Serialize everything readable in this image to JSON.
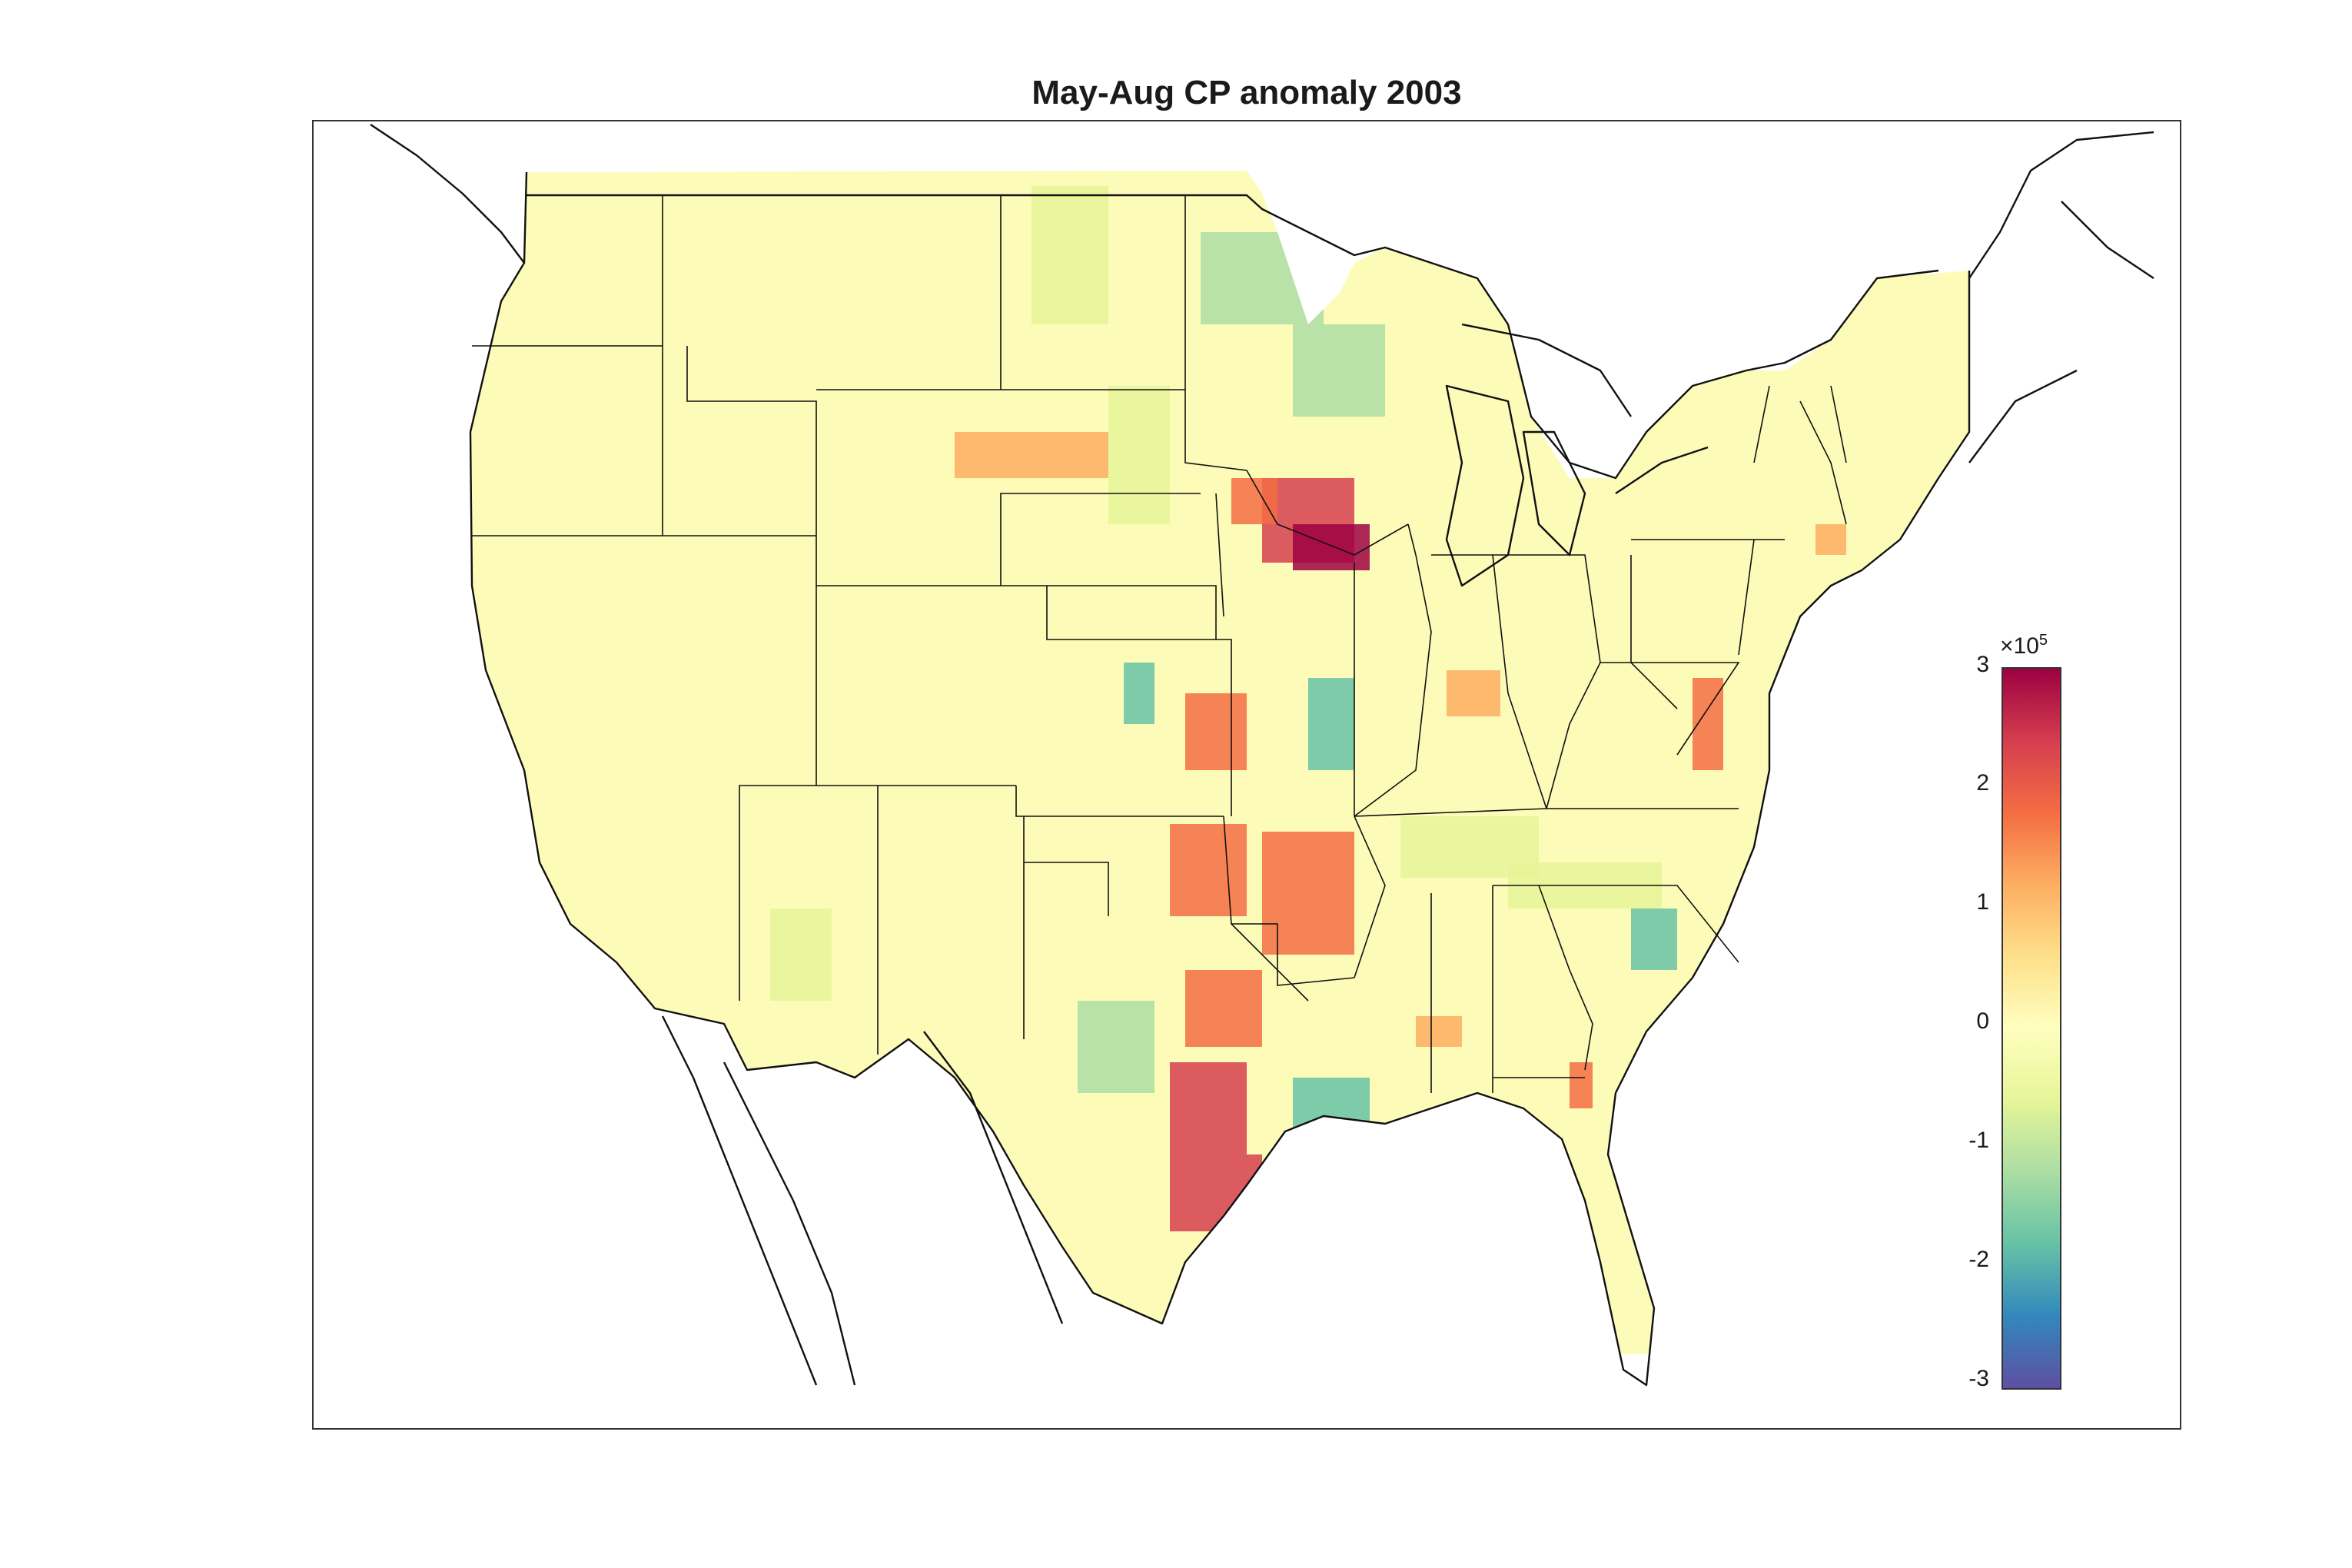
{
  "title": "May-Aug CP anomaly 2003",
  "colorbar": {
    "ticks": [
      "3",
      "2",
      "1",
      "0",
      "-1",
      "-2",
      "-3"
    ],
    "exponent_base": "×10",
    "exponent_power": "5",
    "colormap": [
      "#5e4fa2",
      "#3288bd",
      "#66c2a5",
      "#abdda4",
      "#e6f598",
      "#ffffbf",
      "#fee08b",
      "#fdae61",
      "#f46d43",
      "#d53e4f",
      "#9e0142"
    ]
  },
  "chart_data": {
    "type": "heatmap",
    "title": "May-Aug CP anomaly 2003",
    "value_range": [
      -300000,
      300000
    ],
    "colorbar_ticks": [
      -3,
      -2,
      -1,
      0,
      1,
      2,
      3
    ],
    "colorbar_multiplier": "×10^5",
    "region": "Contiguous United States"
  }
}
